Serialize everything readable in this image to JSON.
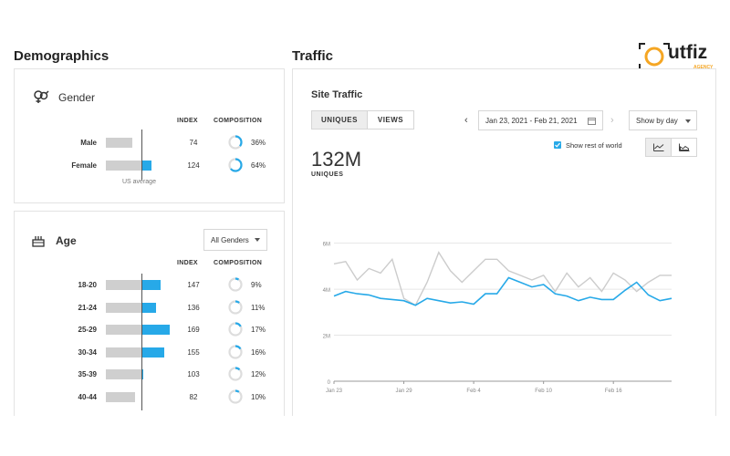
{
  "demographics": {
    "title": "Demographics",
    "gender": {
      "title": "Gender",
      "icon": "gender-icon",
      "headers": {
        "index": "INDEX",
        "composition": "COMPOSITION"
      },
      "baseline_note": "US average",
      "rows": [
        {
          "label": "Male",
          "index": "74",
          "composition": "36%",
          "fraction": 0.36
        },
        {
          "label": "Female",
          "index": "124",
          "composition": "64%",
          "fraction": 0.64
        }
      ]
    },
    "age": {
      "title": "Age",
      "icon": "cake-icon",
      "filter": "All Genders",
      "headers": {
        "index": "INDEX",
        "composition": "COMPOSITION"
      },
      "rows": [
        {
          "label": "18-20",
          "index": "147",
          "composition": "9%",
          "fraction": 0.09
        },
        {
          "label": "21-24",
          "index": "136",
          "composition": "11%",
          "fraction": 0.11
        },
        {
          "label": "25-29",
          "index": "169",
          "composition": "17%",
          "fraction": 0.17
        },
        {
          "label": "30-34",
          "index": "155",
          "composition": "16%",
          "fraction": 0.16
        },
        {
          "label": "35-39",
          "index": "103",
          "composition": "12%",
          "fraction": 0.12
        },
        {
          "label": "40-44",
          "index": "82",
          "composition": "10%",
          "fraction": 0.1
        }
      ]
    }
  },
  "traffic": {
    "title": "Traffic",
    "card_title": "Site Traffic",
    "tabs": [
      "UNIQUES",
      "VIEWS"
    ],
    "active_tab": 0,
    "date_range": "Jan 23, 2021 - Feb 21, 2021",
    "show_by": "Show by day",
    "show_rest_label": "Show rest of world",
    "show_rest_checked": true,
    "big_value": "132M",
    "big_label": "UNIQUES"
  },
  "logo": {
    "text": "utfiz",
    "sub": "AGENCY",
    "accent": "#f5a623"
  },
  "colors": {
    "blue": "#27a9e8",
    "gray_line": "#cccccc",
    "bar_gray": "#cfcfcf"
  },
  "chart_data": {
    "type": "line",
    "x": [
      "Jan 23",
      "Jan 24",
      "Jan 25",
      "Jan 26",
      "Jan 27",
      "Jan 28",
      "Jan 29",
      "Jan 30",
      "Jan 31",
      "Feb 1",
      "Feb 2",
      "Feb 3",
      "Feb 4",
      "Feb 5",
      "Feb 6",
      "Feb 7",
      "Feb 8",
      "Feb 9",
      "Feb 10",
      "Feb 11",
      "Feb 12",
      "Feb 13",
      "Feb 14",
      "Feb 15",
      "Feb 16",
      "Feb 17",
      "Feb 18",
      "Feb 19",
      "Feb 20",
      "Feb 21"
    ],
    "xticks": [
      "Jan 23",
      "Jan 29",
      "Feb 4",
      "Feb 10",
      "Feb 16"
    ],
    "yticks": [
      "0",
      "2M",
      "4M",
      "6M"
    ],
    "ylim": [
      0,
      6.5
    ],
    "series": [
      {
        "color": "#cccccc",
        "values": [
          5.1,
          5.2,
          4.4,
          4.9,
          4.7,
          5.3,
          3.6,
          3.3,
          4.3,
          5.6,
          4.8,
          4.3,
          4.8,
          5.3,
          5.3,
          4.8,
          4.6,
          4.4,
          4.6,
          3.9,
          4.7,
          4.1,
          4.5,
          3.9,
          4.7,
          4.4,
          3.9,
          4.3,
          4.6,
          4.6
        ]
      },
      {
        "color": "#27a9e8",
        "values": [
          3.7,
          3.9,
          3.8,
          3.75,
          3.6,
          3.55,
          3.5,
          3.3,
          3.6,
          3.5,
          3.4,
          3.45,
          3.35,
          3.8,
          3.8,
          4.5,
          4.3,
          4.1,
          4.2,
          3.8,
          3.7,
          3.5,
          3.65,
          3.55,
          3.55,
          3.95,
          4.3,
          3.75,
          3.5,
          3.6
        ]
      }
    ]
  }
}
